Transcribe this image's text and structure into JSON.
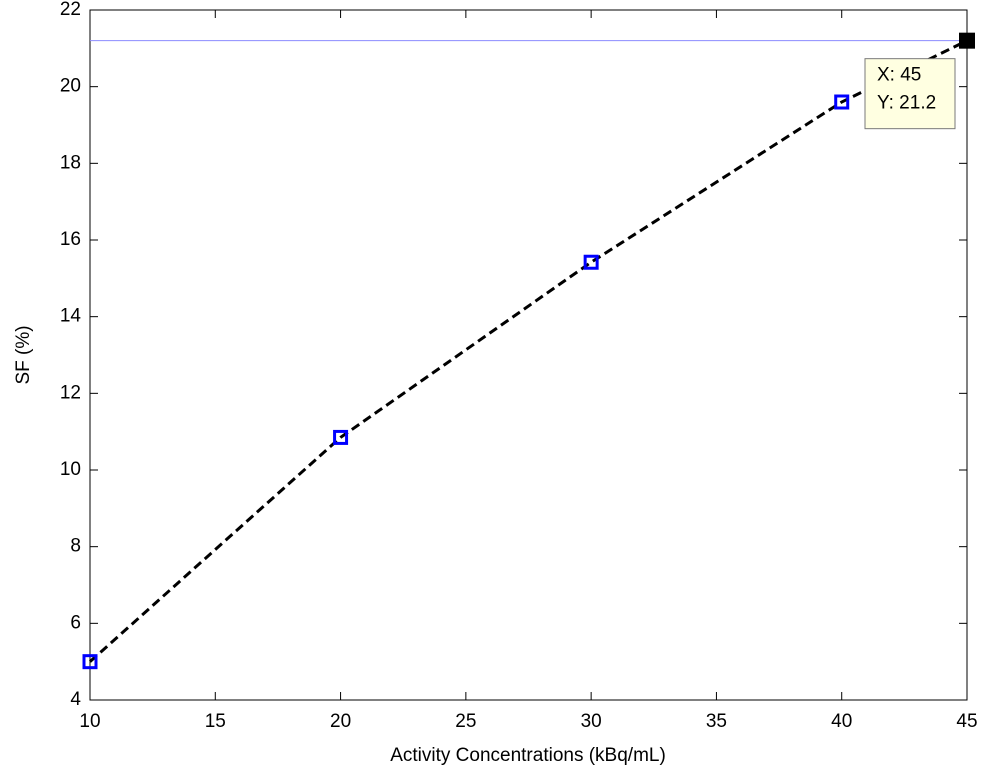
{
  "chart_data": {
    "type": "line",
    "x_label": "Activity Concentrations (kBq/mL)",
    "y_label": "SF (%)",
    "x": [
      10,
      20,
      30,
      40,
      45
    ],
    "values": [
      5.0,
      10.85,
      15.42,
      19.6,
      21.2
    ],
    "color": "#000000",
    "marker_color": "#0000ff",
    "xlim": [
      10,
      45
    ],
    "xticks": [
      10,
      15,
      20,
      25,
      30,
      35,
      40,
      45
    ],
    "ylim": [
      4,
      22
    ],
    "yticks": [
      4,
      6,
      8,
      10,
      12,
      14,
      16,
      18,
      20,
      22
    ],
    "grid": false,
    "reference_line": {
      "value": 21.2,
      "color": "#8c8cff"
    },
    "datatip": {
      "x": 45,
      "y": 21.2,
      "lines": [
        "X: 45",
        "Y: 21.2"
      ],
      "color": "#000000"
    }
  }
}
